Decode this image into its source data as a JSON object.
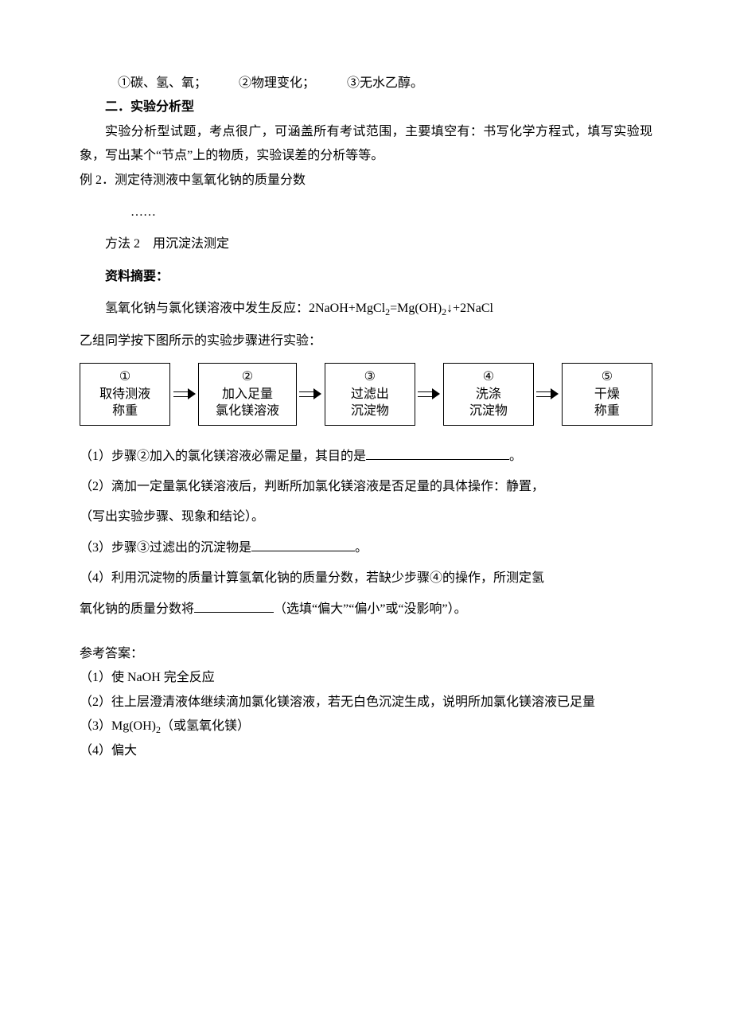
{
  "line_top": "①碳、氢、氧；　　　②物理变化；　　　③无水乙醇。",
  "heading1": "二．实验分析型",
  "para1": "实验分析型试题，考点很广，可涵盖所有考试范围，主要填空有：书写化学方程式，填写实验现象，写出某个“节点”上的物质，实验误差的分析等等。",
  "example_line": "例 2．测定待测液中氢氧化钠的质量分数",
  "ellipsis": "……",
  "method_line": "方法 2　用沉淀法测定",
  "abstract_heading": "资料摘要：",
  "reaction_pre": "氢氧化钠与氯化镁溶液中发生反应：2NaOH+MgCl",
  "reaction_sub1": "2",
  "reaction_mid1": "=Mg(OH)",
  "reaction_sub2": "2",
  "reaction_mid2": "↓+2NaCl",
  "group_line": "乙组同学按下图所示的实验步骤进行实验：",
  "flow": {
    "boxes": [
      {
        "l1": "①",
        "l2": "取待测液",
        "l3": "称重"
      },
      {
        "l1": "②",
        "l2": "加入足量",
        "l3": "氯化镁溶液"
      },
      {
        "l1": "③",
        "l2": "过滤出",
        "l3": "沉淀物"
      },
      {
        "l1": "④",
        "l2": "洗涤",
        "l3": "沉淀物"
      },
      {
        "l1": "⑤",
        "l2": "干燥",
        "l3": "称重"
      }
    ]
  },
  "q1_pre": "（1）步骤②加入的氯化镁溶液必需足量，其目的是",
  "q1_post": "。",
  "q2": "（2）滴加一定量氯化镁溶液后，判断所加氯化镁溶液是否足量的具体操作：静置，",
  "q2b": "（写出实验步骤、现象和结论）。",
  "q3_pre": "（3）步骤③过滤出的沉淀物是",
  "q3_post": "。",
  "q4a": "（4）利用沉淀物的质量计算氢氧化钠的质量分数，若缺少步骤④的操作，所测定氢",
  "q4b_pre": "氧化钠的质量分数将",
  "q4b_post": "（选填“偏大”“偏小”或“没影响”）。",
  "ans_heading": "参考答案：",
  "ans1": "（1）使 NaOH 完全反应",
  "ans2": "（2）往上层澄清液体继续滴加氯化镁溶液，若无白色沉淀生成，说明所加氯化镁溶液已足量",
  "ans3_pre": "（3）Mg(OH)",
  "ans3_sub": "2",
  "ans3_post": "（或氢氧化镁）",
  "ans4": "（4）偏大"
}
